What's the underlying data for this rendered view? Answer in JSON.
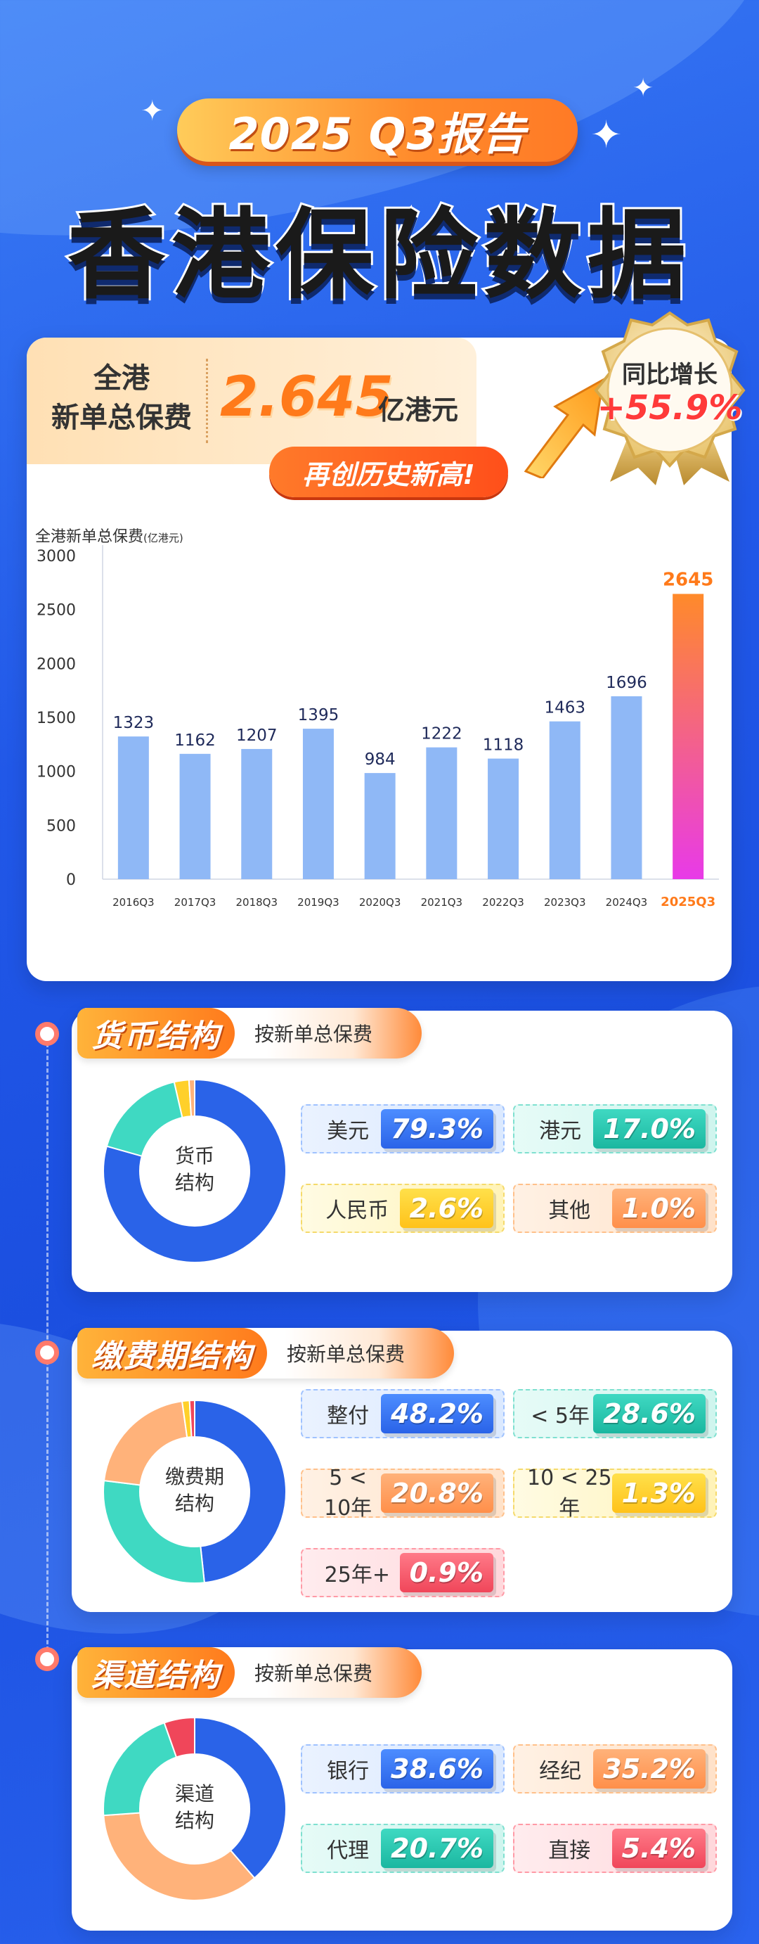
{
  "header": {
    "subtitle": "2025 Q3报告",
    "title": "香港保险数据"
  },
  "summary": {
    "label_line1": "全港",
    "label_line2": "新单总保费",
    "value": "2.645",
    "unit": "亿港元",
    "record_text": "再创历史新高!",
    "yoy_label": "同比增长",
    "yoy_value": "+55.9%"
  },
  "chart_title": "全港新单总保费",
  "chart_title_unit": "(亿港元)",
  "chart_data": {
    "type": "bar",
    "categories": [
      "2016Q3",
      "2017Q3",
      "2018Q3",
      "2019Q3",
      "2020Q3",
      "2021Q3",
      "2022Q3",
      "2023Q3",
      "2024Q3",
      "2025Q3"
    ],
    "values": [
      1323,
      1162,
      1207,
      1395,
      984,
      1222,
      1118,
      1463,
      1696,
      2645
    ],
    "ylabel": "全港新单总保费(亿港元)",
    "ylim": [
      0,
      3000
    ],
    "yticks": [
      0,
      500,
      1000,
      1500,
      2000,
      2500,
      3000
    ],
    "highlight_category": "2025Q3",
    "colors": {
      "bar": "#8fb8f6",
      "highlight_top": "#ff8a2a",
      "highlight_bottom": "#e83ae8",
      "label": "#1f2a5a",
      "highlight_label": "#ff7a1a"
    }
  },
  "sections": [
    {
      "title": "货币结构",
      "subtitle": "按新单总保费",
      "center": [
        "货币",
        "结构"
      ],
      "items": [
        {
          "label": "美元",
          "value": "79.3%",
          "pct": 79.3,
          "color": "#2a63e8",
          "style": "c-blue"
        },
        {
          "label": "港元",
          "value": "17.0%",
          "pct": 17.0,
          "color": "#3fd9c2",
          "style": "c-teal"
        },
        {
          "label": "人民币",
          "value": "2.6%",
          "pct": 2.6,
          "color": "#ffd02a",
          "style": "c-yellow"
        },
        {
          "label": "其他",
          "value": "1.0%",
          "pct": 1.0,
          "color": "#ffb27a",
          "style": "c-orange"
        }
      ]
    },
    {
      "title": "缴费期结构",
      "subtitle": "按新单总保费",
      "center": [
        "缴费期",
        "结构"
      ],
      "items": [
        {
          "label": "整付",
          "value": "48.2%",
          "pct": 48.2,
          "color": "#2a63e8",
          "style": "c-blue"
        },
        {
          "label": "< 5年",
          "value": "28.6%",
          "pct": 28.6,
          "color": "#3fd9c2",
          "style": "c-teal"
        },
        {
          "label": "5 < 10年",
          "value": "20.8%",
          "pct": 20.8,
          "color": "#ffb27a",
          "style": "c-orange"
        },
        {
          "label": "10 < 25年",
          "value": "1.3%",
          "pct": 1.3,
          "color": "#ffd02a",
          "style": "c-yellow"
        },
        {
          "label": "25年+",
          "value": "0.9%",
          "pct": 0.9,
          "color": "#f0465a",
          "style": "c-red"
        }
      ]
    },
    {
      "title": "渠道结构",
      "subtitle": "按新单总保费",
      "center": [
        "渠道",
        "结构"
      ],
      "items": [
        {
          "label": "银行",
          "value": "38.6%",
          "pct": 38.6,
          "color": "#2a63e8",
          "style": "c-blue"
        },
        {
          "label": "经纪",
          "value": "35.2%",
          "pct": 35.2,
          "color": "#ffb27a",
          "style": "c-orange"
        },
        {
          "label": "代理",
          "value": "20.7%",
          "pct": 20.7,
          "color": "#3fd9c2",
          "style": "c-teal"
        },
        {
          "label": "直接",
          "value": "5.4%",
          "pct": 5.4,
          "color": "#f0465a",
          "style": "c-red"
        }
      ]
    }
  ]
}
